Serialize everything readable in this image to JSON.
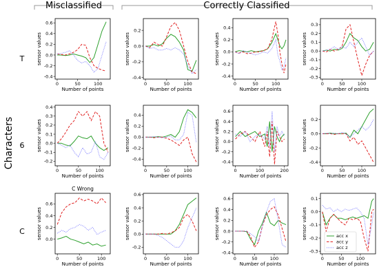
{
  "header": {
    "misclassified": "Misclassified",
    "correct": "Correctly Classified",
    "characters": "Characters"
  },
  "rows": [
    "T",
    "6",
    "C"
  ],
  "colors": {
    "acc_x": "#2ca02c",
    "acc_y": "#e02020",
    "acc_z": "#7b7bff"
  },
  "chart_data": [
    {
      "type": "line",
      "row": "T",
      "col": 1,
      "title": "",
      "xlabel": "Number of points",
      "ylabel": "sensor values",
      "xlim": [
        -5,
        130
      ],
      "ylim": [
        -0.45,
        0.68
      ],
      "xticks": [
        0,
        50,
        100
      ],
      "yticks": [
        -0.4,
        -0.2,
        0.0,
        0.2,
        0.4,
        0.6
      ],
      "x": [
        0,
        10,
        20,
        30,
        40,
        50,
        60,
        70,
        80,
        90,
        100,
        110,
        120
      ],
      "series": [
        {
          "name": "acc x",
          "values": [
            0.0,
            0.0,
            -0.01,
            0.0,
            0.02,
            0.0,
            -0.02,
            -0.05,
            -0.14,
            -0.05,
            0.2,
            0.45,
            0.62
          ]
        },
        {
          "name": "acc y",
          "values": [
            0.02,
            0.01,
            0.0,
            0.02,
            0.05,
            0.1,
            0.2,
            0.18,
            -0.05,
            -0.2,
            -0.25,
            -0.28,
            -0.3
          ]
        },
        {
          "name": "acc z",
          "values": [
            0.02,
            0.03,
            0.05,
            0.08,
            0.0,
            -0.1,
            -0.15,
            -0.12,
            -0.2,
            -0.32,
            -0.25,
            0.0,
            0.25
          ]
        }
      ]
    },
    {
      "type": "line",
      "row": "T",
      "col": 2,
      "title": "",
      "xlabel": "Number of points",
      "ylabel": "sensor values",
      "xlim": [
        -5,
        125
      ],
      "ylim": [
        -0.42,
        0.35
      ],
      "xticks": [
        0,
        50,
        100
      ],
      "yticks": [
        -0.4,
        -0.2,
        0.0,
        0.2
      ],
      "x": [
        0,
        10,
        20,
        30,
        40,
        50,
        60,
        70,
        80,
        90,
        100,
        110,
        120
      ],
      "series": [
        {
          "name": "acc x",
          "values": [
            0.0,
            0.0,
            0.02,
            0.0,
            0.03,
            0.1,
            0.15,
            0.12,
            0.05,
            -0.05,
            -0.3,
            -0.32,
            -0.18
          ]
        },
        {
          "name": "acc y",
          "values": [
            0.0,
            -0.02,
            0.05,
            0.02,
            0.0,
            0.12,
            0.25,
            0.3,
            0.2,
            0.0,
            -0.2,
            -0.33,
            -0.35
          ]
        },
        {
          "name": "acc z",
          "values": [
            0.0,
            -0.03,
            -0.02,
            -0.05,
            -0.05,
            -0.03,
            -0.05,
            -0.02,
            -0.05,
            -0.1,
            -0.25,
            -0.35,
            -0.3
          ]
        }
      ]
    },
    {
      "type": "line",
      "row": "T",
      "col": 3,
      "title": "",
      "xlabel": "Number of points",
      "ylabel": "sensor values",
      "xlim": [
        -5,
        130
      ],
      "ylim": [
        -0.45,
        0.55
      ],
      "xticks": [
        0,
        50,
        100
      ],
      "yticks": [
        -0.4,
        -0.2,
        0.0,
        0.2,
        0.4
      ],
      "x": [
        0,
        10,
        20,
        30,
        40,
        50,
        60,
        70,
        80,
        90,
        100,
        105,
        110,
        115,
        120,
        125
      ],
      "series": [
        {
          "name": "acc x",
          "values": [
            0.0,
            0.02,
            0.01,
            0.0,
            0.02,
            0.0,
            0.01,
            0.02,
            0.05,
            0.15,
            0.3,
            0.2,
            0.1,
            0.05,
            0.1,
            0.2
          ]
        },
        {
          "name": "acc y",
          "values": [
            0.0,
            -0.02,
            0.0,
            -0.03,
            -0.02,
            0.0,
            0.0,
            0.02,
            0.05,
            0.2,
            0.5,
            0.3,
            0.0,
            -0.2,
            -0.35,
            -0.2
          ]
        },
        {
          "name": "acc z",
          "values": [
            0.0,
            -0.03,
            0.02,
            0.0,
            -0.03,
            -0.05,
            -0.03,
            0.0,
            -0.02,
            0.05,
            0.2,
            -0.05,
            -0.15,
            -0.3,
            -0.25,
            -0.1
          ]
        }
      ]
    },
    {
      "type": "line",
      "row": "T",
      "col": 4,
      "title": "",
      "xlabel": "Number of points",
      "ylabel": "sensor values",
      "xlim": [
        -5,
        135
      ],
      "ylim": [
        -0.32,
        0.37
      ],
      "xticks": [
        0,
        50,
        100
      ],
      "yticks": [
        -0.3,
        -0.2,
        -0.1,
        0.0,
        0.1,
        0.2,
        0.3
      ],
      "x": [
        0,
        10,
        20,
        30,
        40,
        50,
        60,
        70,
        80,
        90,
        100,
        110,
        120,
        130
      ],
      "series": [
        {
          "name": "acc x",
          "values": [
            0.0,
            0.01,
            0.0,
            0.02,
            0.01,
            0.03,
            0.1,
            0.2,
            0.15,
            0.12,
            0.05,
            0.0,
            0.02,
            0.1
          ]
        },
        {
          "name": "acc y",
          "values": [
            0.0,
            -0.01,
            0.02,
            0.0,
            0.02,
            0.05,
            0.25,
            0.3,
            0.1,
            -0.1,
            -0.28,
            -0.15,
            -0.05,
            0.0
          ]
        },
        {
          "name": "acc z",
          "values": [
            0.0,
            0.01,
            0.02,
            0.05,
            0.02,
            0.05,
            0.03,
            0.1,
            0.05,
            0.1,
            0.15,
            0.05,
            -0.05,
            0.0
          ]
        }
      ]
    },
    {
      "type": "line",
      "row": "6",
      "col": 1,
      "title": "",
      "xlabel": "Number of points",
      "ylabel": "sensor values",
      "xlim": [
        -5,
        125
      ],
      "ylim": [
        -0.25,
        0.42
      ],
      "xticks": [
        0,
        50,
        100
      ],
      "yticks": [
        -0.2,
        -0.1,
        0.0,
        0.1,
        0.2,
        0.3,
        0.4
      ],
      "x": [
        0,
        10,
        20,
        30,
        40,
        50,
        60,
        70,
        80,
        90,
        100,
        110,
        120
      ],
      "series": [
        {
          "name": "acc x",
          "values": [
            0.0,
            0.0,
            -0.02,
            -0.03,
            0.02,
            0.08,
            0.06,
            0.05,
            0.08,
            0.0,
            -0.05,
            -0.08,
            -0.05
          ]
        },
        {
          "name": "acc y",
          "values": [
            0.0,
            0.05,
            0.12,
            0.2,
            0.25,
            0.35,
            0.3,
            0.35,
            0.25,
            0.35,
            0.3,
            0.0,
            -0.1
          ]
        },
        {
          "name": "acc z",
          "values": [
            0.0,
            -0.02,
            -0.05,
            -0.02,
            -0.1,
            -0.15,
            -0.05,
            -0.12,
            -0.1,
            0.02,
            -0.15,
            -0.18,
            -0.1
          ]
        }
      ]
    },
    {
      "type": "line",
      "row": "6",
      "col": 2,
      "title": "",
      "xlabel": "Number of points",
      "ylabel": "sensor values",
      "xlim": [
        -5,
        125
      ],
      "ylim": [
        -0.52,
        0.58
      ],
      "xticks": [
        0,
        50,
        100
      ],
      "yticks": [
        -0.4,
        -0.2,
        0.0,
        0.2,
        0.4
      ],
      "x": [
        0,
        10,
        20,
        30,
        40,
        50,
        60,
        70,
        80,
        90,
        100,
        110,
        120
      ],
      "series": [
        {
          "name": "acc x",
          "values": [
            0.0,
            0.0,
            0.0,
            0.01,
            0.0,
            0.02,
            0.05,
            0.0,
            0.1,
            0.35,
            0.5,
            0.45,
            0.35
          ]
        },
        {
          "name": "acc y",
          "values": [
            0.0,
            0.0,
            -0.01,
            0.0,
            0.0,
            -0.02,
            -0.05,
            -0.1,
            -0.15,
            -0.05,
            0.0,
            -0.3,
            -0.45
          ]
        },
        {
          "name": "acc z",
          "values": [
            0.0,
            0.0,
            0.01,
            0.0,
            -0.01,
            0.0,
            0.02,
            -0.05,
            -0.05,
            0.05,
            0.45,
            0.4,
            -0.1
          ]
        }
      ]
    },
    {
      "type": "line",
      "row": "6",
      "col": 3,
      "title": "",
      "xlabel": "Number of points",
      "ylabel": "sensor values",
      "xlim": [
        -10,
        215
      ],
      "ylim": [
        -0.48,
        0.72
      ],
      "xticks": [
        0,
        100,
        200
      ],
      "yticks": [
        -0.4,
        -0.2,
        0.0,
        0.2,
        0.4,
        0.6
      ],
      "x": [
        0,
        20,
        40,
        60,
        80,
        100,
        120,
        130,
        140,
        150,
        160,
        170,
        180,
        190,
        200
      ],
      "series": [
        {
          "name": "acc x",
          "values": [
            0.1,
            0.2,
            0.1,
            0.15,
            0.2,
            0.1,
            0.15,
            -0.1,
            0.4,
            -0.2,
            0.3,
            0.1,
            0.0,
            0.1,
            0.15
          ]
        },
        {
          "name": "acc y",
          "values": [
            0.05,
            0.15,
            0.2,
            0.1,
            0.0,
            0.2,
            -0.1,
            0.2,
            -0.3,
            0.4,
            -0.45,
            0.2,
            0.1,
            0.0,
            0.05
          ]
        },
        {
          "name": "acc z",
          "values": [
            0.15,
            0.1,
            0.2,
            0.0,
            0.1,
            0.15,
            0.05,
            0.3,
            -0.1,
            0.6,
            -0.2,
            0.3,
            0.1,
            0.2,
            0.1
          ]
        }
      ]
    },
    {
      "type": "line",
      "row": "6",
      "col": 4,
      "title": "",
      "xlabel": "Number of points",
      "ylabel": "sensor values",
      "xlim": [
        -5,
        135
      ],
      "ylim": [
        -0.45,
        0.4
      ],
      "xticks": [
        0,
        50,
        100
      ],
      "yticks": [
        -0.4,
        -0.2,
        0.0,
        0.2
      ],
      "x": [
        0,
        10,
        20,
        30,
        40,
        50,
        60,
        70,
        80,
        90,
        100,
        110,
        120,
        130
      ],
      "series": [
        {
          "name": "acc x",
          "values": [
            0.0,
            0.0,
            0.01,
            0.0,
            0.0,
            0.0,
            0.01,
            -0.05,
            0.05,
            0.0,
            0.1,
            0.2,
            0.3,
            0.35
          ]
        },
        {
          "name": "acc y",
          "values": [
            0.0,
            0.0,
            0.0,
            -0.01,
            0.0,
            0.0,
            0.0,
            -0.1,
            -0.05,
            -0.15,
            -0.1,
            -0.2,
            -0.3,
            -0.4
          ]
        },
        {
          "name": "acc z",
          "values": [
            0.0,
            0.01,
            0.0,
            0.01,
            0.0,
            0.02,
            0.0,
            -0.05,
            0.0,
            0.05,
            0.1,
            0.05,
            0.1,
            0.2
          ]
        }
      ]
    },
    {
      "type": "line",
      "row": "C",
      "col": 1,
      "title": "C Wrong",
      "xlabel": "Number of points",
      "ylabel": "sensor values",
      "xlim": [
        -5,
        120
      ],
      "ylim": [
        -0.25,
        0.78
      ],
      "xticks": [
        0,
        50,
        100
      ],
      "yticks": [
        0.0,
        0.2,
        0.4,
        0.6
      ],
      "x": [
        0,
        10,
        20,
        30,
        40,
        50,
        60,
        70,
        80,
        90,
        100,
        110
      ],
      "series": [
        {
          "name": "acc x",
          "values": [
            0.0,
            0.02,
            0.05,
            0.0,
            -0.02,
            -0.05,
            -0.08,
            -0.05,
            -0.1,
            -0.08,
            -0.12,
            -0.1
          ]
        },
        {
          "name": "acc y",
          "values": [
            0.25,
            0.45,
            0.55,
            0.6,
            0.62,
            0.7,
            0.65,
            0.68,
            0.65,
            0.6,
            0.7,
            0.62
          ]
        },
        {
          "name": "acc z",
          "values": [
            0.1,
            0.15,
            0.12,
            0.18,
            0.2,
            0.25,
            0.22,
            0.15,
            0.2,
            0.08,
            0.12,
            0.15
          ]
        }
      ]
    },
    {
      "type": "line",
      "row": "C",
      "col": 2,
      "title": "",
      "xlabel": "Number of points",
      "ylabel": "sensor values",
      "xlim": [
        -5,
        125
      ],
      "ylim": [
        -0.3,
        0.62
      ],
      "xticks": [
        0,
        50,
        100
      ],
      "yticks": [
        -0.2,
        0.0,
        0.2,
        0.4,
        0.6
      ],
      "x": [
        0,
        10,
        20,
        30,
        40,
        50,
        60,
        70,
        80,
        90,
        100,
        110,
        120
      ],
      "series": [
        {
          "name": "acc x",
          "values": [
            0.0,
            0.0,
            0.0,
            0.0,
            0.0,
            0.0,
            0.0,
            0.05,
            0.15,
            0.3,
            0.45,
            0.5,
            0.55
          ]
        },
        {
          "name": "acc y",
          "values": [
            0.0,
            0.0,
            0.0,
            0.0,
            0.01,
            0.0,
            0.02,
            0.05,
            0.1,
            0.25,
            0.3,
            0.2,
            0.05
          ]
        },
        {
          "name": "acc z",
          "values": [
            0.0,
            0.0,
            0.0,
            -0.02,
            -0.05,
            -0.1,
            -0.15,
            -0.2,
            -0.2,
            -0.1,
            0.1,
            0.25,
            0.4
          ]
        }
      ]
    },
    {
      "type": "line",
      "row": "C",
      "col": 3,
      "title": "",
      "xlabel": "Number of points",
      "ylabel": "sensor values",
      "xlim": [
        -5,
        135
      ],
      "ylim": [
        -0.42,
        0.7
      ],
      "xticks": [
        0,
        50,
        100
      ],
      "yticks": [
        -0.4,
        -0.2,
        0.0,
        0.2,
        0.4,
        0.6
      ],
      "x": [
        0,
        10,
        20,
        30,
        40,
        50,
        60,
        70,
        80,
        90,
        100,
        110,
        120,
        130
      ],
      "series": [
        {
          "name": "acc x",
          "values": [
            0.0,
            0.0,
            0.0,
            -0.01,
            -0.15,
            -0.25,
            0.0,
            0.15,
            0.35,
            0.15,
            0.1,
            0.2,
            0.15,
            0.12
          ]
        },
        {
          "name": "acc y",
          "values": [
            0.0,
            0.0,
            0.0,
            0.0,
            -0.1,
            -0.3,
            -0.2,
            0.1,
            0.3,
            0.4,
            0.45,
            0.3,
            0.05,
            -0.2
          ]
        },
        {
          "name": "acc z",
          "values": [
            0.0,
            0.0,
            0.0,
            0.0,
            -0.05,
            -0.1,
            -0.2,
            0.1,
            0.35,
            0.55,
            0.6,
            0.2,
            -0.25,
            -0.3
          ]
        }
      ]
    },
    {
      "type": "line",
      "row": "C",
      "col": 4,
      "title": "",
      "xlabel": "Number of points",
      "ylabel": "sensor values",
      "xlim": [
        -5,
        140
      ],
      "ylim": [
        -0.32,
        0.14
      ],
      "xticks": [
        0,
        50,
        100
      ],
      "yticks": [
        -0.3,
        -0.2,
        -0.1,
        0.0,
        0.1
      ],
      "x": [
        0,
        10,
        20,
        30,
        40,
        50,
        60,
        70,
        80,
        90,
        100,
        110,
        120,
        130,
        135
      ],
      "series": [
        {
          "name": "acc x",
          "values": [
            0.0,
            -0.1,
            -0.05,
            -0.02,
            -0.05,
            -0.05,
            -0.06,
            -0.05,
            -0.04,
            -0.05,
            -0.04,
            -0.03,
            -0.05,
            0.08,
            0.1
          ]
        },
        {
          "name": "acc y",
          "values": [
            0.0,
            -0.15,
            -0.05,
            -0.02,
            -0.05,
            -0.08,
            -0.1,
            -0.05,
            -0.06,
            -0.05,
            -0.07,
            -0.2,
            -0.3,
            0.0,
            0.02
          ]
        },
        {
          "name": "acc z",
          "values": [
            0.05,
            0.02,
            0.03,
            0.0,
            0.02,
            0.0,
            0.02,
            0.01,
            0.02,
            0.03,
            0.0,
            -0.05,
            -0.25,
            -0.1,
            0.0
          ]
        }
      ],
      "legend": "lower-right"
    }
  ]
}
